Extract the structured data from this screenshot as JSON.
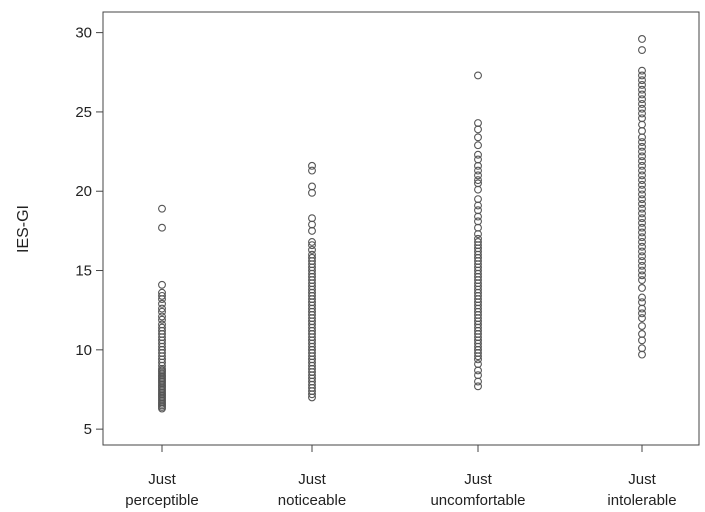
{
  "chart_data": {
    "type": "scatter",
    "title": "",
    "xlabel": "",
    "ylabel": "IES-GI",
    "ylim": [
      4,
      31.3
    ],
    "yticks": [
      5,
      10,
      15,
      20,
      25,
      30
    ],
    "grid": false,
    "categories": [
      {
        "line1": "Just",
        "line2": "perceptible"
      },
      {
        "line1": "Just",
        "line2": "noticeable"
      },
      {
        "line1": "Just",
        "line2": "uncomfortable"
      },
      {
        "line1": "Just",
        "line2": "intolerable"
      }
    ],
    "series": [
      {
        "category_index": 0,
        "values": [
          18.9,
          17.7,
          14.1,
          13.6,
          13.4,
          13.2,
          12.9,
          12.6,
          12.4,
          12.1,
          11.9,
          11.6,
          11.4,
          11.2,
          11.0,
          10.8,
          10.6,
          10.4,
          10.2,
          10.0,
          9.8,
          9.6,
          9.4,
          9.2,
          9.0,
          8.8,
          8.7,
          8.6,
          8.5,
          8.4,
          8.3,
          8.2,
          8.1,
          8.0,
          7.9,
          7.8,
          7.7,
          7.6,
          7.5,
          7.4,
          7.3,
          7.2,
          7.1,
          7.0,
          6.9,
          6.8,
          6.7,
          6.6,
          6.5,
          6.4,
          6.3
        ]
      },
      {
        "category_index": 1,
        "values": [
          21.6,
          21.3,
          20.3,
          19.9,
          18.3,
          17.9,
          17.5,
          16.8,
          16.6,
          16.3,
          16.0,
          15.8,
          15.6,
          15.4,
          15.2,
          15.0,
          14.8,
          14.6,
          14.4,
          14.2,
          14.0,
          13.8,
          13.6,
          13.4,
          13.2,
          13.0,
          12.8,
          12.6,
          12.4,
          12.2,
          12.0,
          11.8,
          11.6,
          11.4,
          11.2,
          11.0,
          10.8,
          10.6,
          10.4,
          10.2,
          10.0,
          9.8,
          9.6,
          9.4,
          9.2,
          9.0,
          8.8,
          8.6,
          8.4,
          8.2,
          8.0,
          7.8,
          7.6,
          7.4,
          7.2,
          7.0
        ]
      },
      {
        "category_index": 2,
        "values": [
          27.3,
          24.3,
          23.9,
          23.4,
          22.9,
          22.3,
          22.0,
          21.6,
          21.3,
          21.0,
          20.7,
          20.5,
          20.1,
          19.5,
          19.1,
          18.8,
          18.4,
          18.1,
          17.7,
          17.3,
          17.0,
          16.8,
          16.6,
          16.4,
          16.2,
          16.0,
          15.8,
          15.6,
          15.4,
          15.2,
          15.0,
          14.8,
          14.6,
          14.4,
          14.2,
          14.0,
          13.8,
          13.6,
          13.4,
          13.2,
          13.0,
          12.8,
          12.6,
          12.4,
          12.2,
          12.0,
          11.8,
          11.6,
          11.4,
          11.2,
          11.0,
          10.8,
          10.6,
          10.4,
          10.2,
          10.0,
          9.8,
          9.6,
          9.4,
          9.1,
          8.7,
          8.4,
          8.0,
          7.7
        ]
      },
      {
        "category_index": 3,
        "values": [
          29.6,
          28.9,
          27.6,
          27.3,
          27.0,
          26.7,
          26.4,
          26.1,
          25.8,
          25.5,
          25.2,
          24.9,
          24.6,
          24.2,
          23.8,
          23.4,
          23.1,
          22.8,
          22.5,
          22.2,
          21.9,
          21.6,
          21.3,
          21.0,
          20.7,
          20.4,
          20.1,
          19.8,
          19.5,
          19.2,
          18.9,
          18.6,
          18.3,
          18.0,
          17.7,
          17.4,
          17.1,
          16.8,
          16.5,
          16.2,
          15.9,
          15.6,
          15.3,
          15.0,
          14.7,
          14.4,
          13.9,
          13.3,
          13.0,
          12.6,
          12.3,
          12.0,
          11.5,
          11.0,
          10.6,
          10.1,
          9.7
        ]
      }
    ]
  }
}
